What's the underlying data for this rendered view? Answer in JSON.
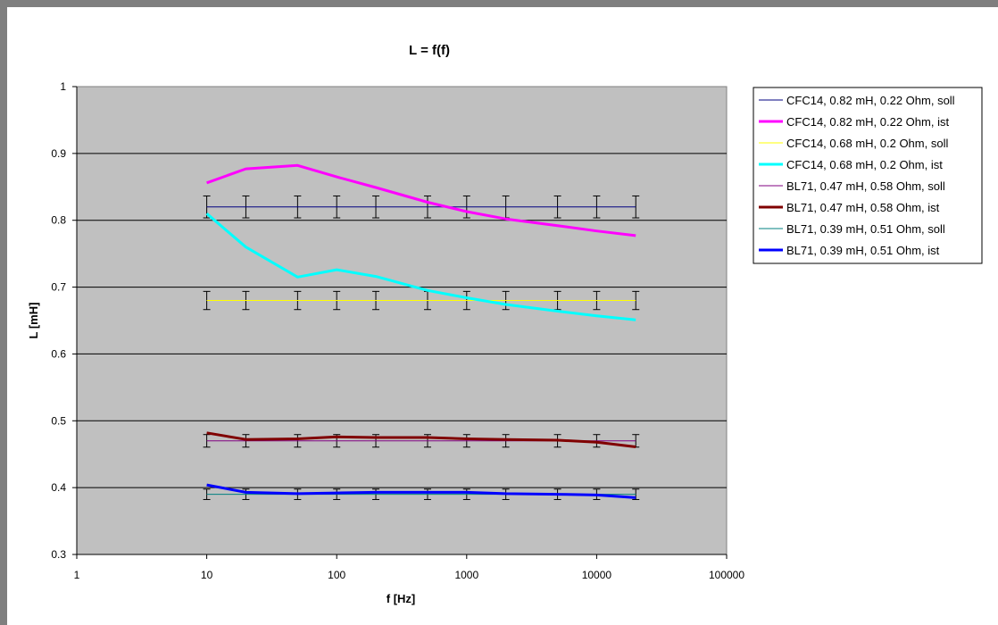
{
  "chart_data": {
    "type": "line",
    "title": "L = f(f)",
    "xlabel": "f [Hz]",
    "ylabel": "L [mH]",
    "x_scale": "log",
    "xlim": [
      1,
      100000
    ],
    "ylim": [
      0.3,
      1.0
    ],
    "x_ticks": [
      "1",
      "10",
      "100",
      "1000",
      "10000",
      "100000"
    ],
    "y_ticks": [
      "0.3",
      "0.4",
      "0.5",
      "0.6",
      "0.7",
      "0.8",
      "0.9",
      "1"
    ],
    "grid": "horizontal",
    "plot_background": "#c0c0c0",
    "legend_position": "right",
    "x": [
      10,
      20,
      50,
      100,
      200,
      500,
      1000,
      2000,
      5000,
      10000,
      20000
    ],
    "series": [
      {
        "name": "CFC14, 0.82 mH, 0.22 Ohm, soll",
        "color": "#000080",
        "width": 1,
        "error": 0.0164,
        "values": [
          0.82,
          0.82,
          0.82,
          0.82,
          0.82,
          0.82,
          0.82,
          0.82,
          0.82,
          0.82,
          0.82
        ]
      },
      {
        "name": "CFC14, 0.82 mH, 0.22 Ohm, ist",
        "color": "#ff00ff",
        "width": 3,
        "values": [
          0.856,
          0.877,
          0.882,
          0.865,
          0.849,
          0.827,
          0.813,
          0.802,
          0.792,
          0.784,
          0.777
        ]
      },
      {
        "name": "CFC14, 0.68 mH, 0.2 Ohm, soll",
        "color": "#ffff00",
        "width": 1,
        "error": 0.0136,
        "values": [
          0.68,
          0.68,
          0.68,
          0.68,
          0.68,
          0.68,
          0.68,
          0.68,
          0.68,
          0.68,
          0.68
        ]
      },
      {
        "name": "CFC14, 0.68 mH, 0.2 Ohm, ist",
        "color": "#00ffff",
        "width": 3,
        "values": [
          0.81,
          0.76,
          0.715,
          0.726,
          0.716,
          0.695,
          0.684,
          0.674,
          0.664,
          0.657,
          0.651
        ]
      },
      {
        "name": "BL71, 0.47 mH, 0.58 Ohm, soll",
        "color": "#800080",
        "width": 1,
        "error": 0.0094,
        "values": [
          0.47,
          0.47,
          0.47,
          0.47,
          0.47,
          0.47,
          0.47,
          0.47,
          0.47,
          0.47,
          0.47
        ]
      },
      {
        "name": "BL71, 0.47 mH, 0.58 Ohm, ist",
        "color": "#800000",
        "width": 3,
        "values": [
          0.482,
          0.472,
          0.473,
          0.476,
          0.475,
          0.475,
          0.473,
          0.472,
          0.471,
          0.468,
          0.461
        ]
      },
      {
        "name": "BL71, 0.39 mH, 0.51 Ohm, soll",
        "color": "#008080",
        "width": 1,
        "error": 0.0078,
        "values": [
          0.39,
          0.39,
          0.39,
          0.39,
          0.39,
          0.39,
          0.39,
          0.39,
          0.39,
          0.39,
          0.39
        ]
      },
      {
        "name": "BL71, 0.39 mH, 0.51 Ohm, ist",
        "color": "#0000ff",
        "width": 3,
        "values": [
          0.404,
          0.393,
          0.391,
          0.392,
          0.393,
          0.393,
          0.393,
          0.391,
          0.39,
          0.389,
          0.385
        ]
      }
    ]
  }
}
